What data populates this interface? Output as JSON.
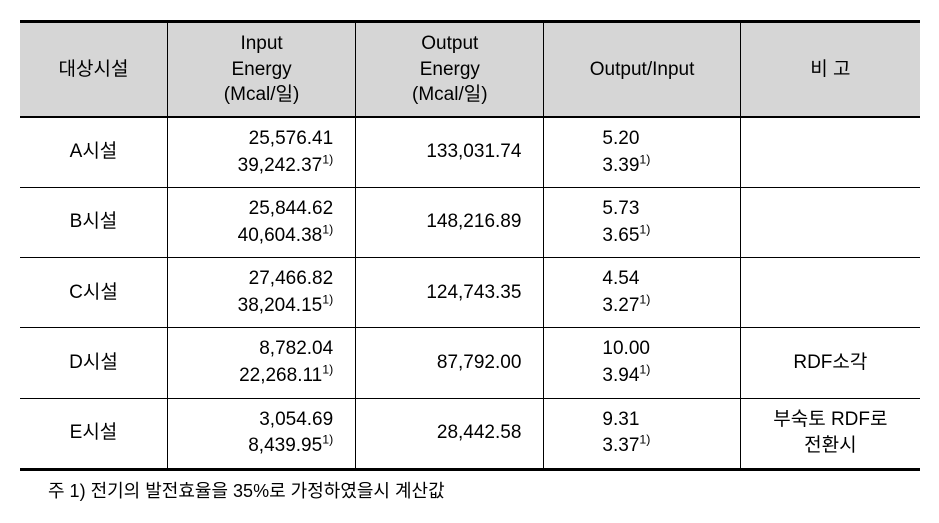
{
  "table": {
    "headers": {
      "facility": "대상시설",
      "input_l1": "Input",
      "input_l2": "Energy",
      "input_l3": "(Mcal/일)",
      "output_l1": "Output",
      "output_l2": "Energy",
      "output_l3": "(Mcal/일)",
      "ratio": "Output/Input",
      "note": "비  고"
    },
    "rows": [
      {
        "name": "A시설",
        "input1": "25,576.41",
        "input2": "39,242.37",
        "input2_sup": "1)",
        "output": "133,031.74",
        "ratio1": "5.20",
        "ratio2": "3.39",
        "ratio2_sup": "1)",
        "note": ""
      },
      {
        "name": "B시설",
        "input1": "25,844.62",
        "input2": "40,604.38",
        "input2_sup": "1)",
        "output": "148,216.89",
        "ratio1": "5.73",
        "ratio2": "3.65",
        "ratio2_sup": "1)",
        "note": ""
      },
      {
        "name": "C시설",
        "input1": "27,466.82",
        "input2": "38,204.15",
        "input2_sup": "1)",
        "output": "124,743.35",
        "ratio1": "4.54",
        "ratio2": "3.27",
        "ratio2_sup": "1)",
        "note": ""
      },
      {
        "name": "D시설",
        "input1": "8,782.04",
        "input2": "22,268.11",
        "input2_sup": "1)",
        "output": "87,792.00",
        "ratio1": "10.00",
        "ratio2": "3.94",
        "ratio2_sup": "1)",
        "note": "RDF소각"
      },
      {
        "name": "E시설",
        "input1": "3,054.69",
        "input2": "8,439.95",
        "input2_sup": "1)",
        "output": "28,442.58",
        "ratio1": "9.31",
        "ratio2": "3.37",
        "ratio2_sup": "1)",
        "note": "부숙토 RDF로\n전환시"
      }
    ]
  },
  "footnote": "주 1) 전기의 발전효율을 35%로 가정하였을시 계산값",
  "style": {
    "header_bg": "#d6d6d6",
    "border_color": "#000000",
    "background": "#ffffff",
    "text_color": "#000000",
    "font_size_cell": 19,
    "font_size_note": 18,
    "col_widths_pct": [
      16,
      21,
      21,
      22,
      20
    ]
  }
}
